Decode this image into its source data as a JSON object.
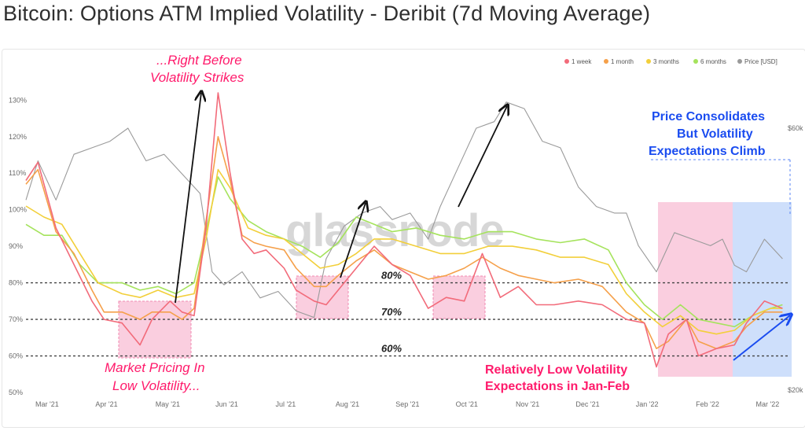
{
  "title": "Bitcoin: Options ATM Implied Volatility - Deribit (7d Moving Average)",
  "watermark": "glassnode",
  "chart_data": {
    "type": "line",
    "x_ticks": [
      "Mar '21",
      "Apr '21",
      "May '21",
      "Jun '21",
      "Jul '21",
      "Aug '21",
      "Sep '21",
      "Oct '21",
      "Nov '21",
      "Dec '21",
      "Jan '22",
      "Feb '22",
      "Mar '22"
    ],
    "y_left_ticks": [
      "50%",
      "60%",
      "70%",
      "80%",
      "90%",
      "100%",
      "110%",
      "120%",
      "130%"
    ],
    "y_left_range": [
      50,
      132
    ],
    "y_right_ticks": [
      "$20k",
      "$60k"
    ],
    "legend": [
      "1 week",
      "1 month",
      "3 months",
      "6 months",
      "Price [USD]"
    ],
    "legend_position": "top-right",
    "colors": {
      "1 week": "#f26b7a",
      "1 month": "#f5a04a",
      "3 months": "#f2cf3a",
      "6 months": "#a5e35c",
      "Price [USD]": "#9a9a9a",
      "annotation_red": "#ff1a6b",
      "annotation_blue": "#1a4cf0",
      "highlight_red": "#f9c6d9",
      "highlight_blue": "#c9dbfb"
    },
    "x_month_index_range": [
      0,
      12.7
    ],
    "series": [
      {
        "name": "1 week",
        "points": [
          [
            0,
            108
          ],
          [
            0.2,
            113
          ],
          [
            0.5,
            95
          ],
          [
            0.8,
            85
          ],
          [
            1.1,
            75
          ],
          [
            1.3,
            70
          ],
          [
            1.6,
            69
          ],
          [
            1.9,
            63
          ],
          [
            2.1,
            70
          ],
          [
            2.4,
            75
          ],
          [
            2.6,
            72
          ],
          [
            2.8,
            71
          ],
          [
            3.0,
            95
          ],
          [
            3.2,
            132
          ],
          [
            3.4,
            110
          ],
          [
            3.6,
            92
          ],
          [
            3.8,
            88
          ],
          [
            4.0,
            89
          ],
          [
            4.3,
            84
          ],
          [
            4.5,
            78
          ],
          [
            4.8,
            75
          ],
          [
            5.0,
            74
          ],
          [
            5.2,
            78
          ],
          [
            5.5,
            84
          ],
          [
            5.8,
            90
          ],
          [
            6.1,
            85
          ],
          [
            6.4,
            82
          ],
          [
            6.7,
            73
          ],
          [
            7.0,
            76
          ],
          [
            7.3,
            75
          ],
          [
            7.6,
            88
          ],
          [
            7.9,
            76
          ],
          [
            8.2,
            79
          ],
          [
            8.5,
            74
          ],
          [
            8.8,
            74
          ],
          [
            9.2,
            75
          ],
          [
            9.6,
            74
          ],
          [
            10.0,
            70
          ],
          [
            10.3,
            69
          ],
          [
            10.5,
            57
          ],
          [
            10.7,
            66
          ],
          [
            11.0,
            70
          ],
          [
            11.2,
            60
          ],
          [
            11.5,
            62
          ],
          [
            11.8,
            63
          ],
          [
            12.0,
            69
          ],
          [
            12.3,
            75
          ],
          [
            12.6,
            73
          ]
        ]
      },
      {
        "name": "1 month",
        "points": [
          [
            0,
            107
          ],
          [
            0.2,
            111
          ],
          [
            0.5,
            94
          ],
          [
            0.8,
            88
          ],
          [
            1.1,
            78
          ],
          [
            1.3,
            72
          ],
          [
            1.6,
            72
          ],
          [
            1.9,
            70
          ],
          [
            2.1,
            72
          ],
          [
            2.4,
            72
          ],
          [
            2.6,
            70
          ],
          [
            2.8,
            73
          ],
          [
            3.0,
            97
          ],
          [
            3.2,
            120
          ],
          [
            3.4,
            108
          ],
          [
            3.6,
            93
          ],
          [
            3.8,
            91
          ],
          [
            4.0,
            90
          ],
          [
            4.3,
            89
          ],
          [
            4.5,
            84
          ],
          [
            4.8,
            79
          ],
          [
            5.0,
            79
          ],
          [
            5.2,
            82
          ],
          [
            5.5,
            86
          ],
          [
            5.8,
            89
          ],
          [
            6.1,
            85
          ],
          [
            6.4,
            83
          ],
          [
            6.7,
            81
          ],
          [
            7.0,
            82
          ],
          [
            7.3,
            84
          ],
          [
            7.6,
            87
          ],
          [
            7.9,
            84
          ],
          [
            8.2,
            82
          ],
          [
            8.5,
            81
          ],
          [
            8.8,
            80
          ],
          [
            9.2,
            81
          ],
          [
            9.6,
            79
          ],
          [
            10.0,
            72
          ],
          [
            10.3,
            69
          ],
          [
            10.5,
            62
          ],
          [
            10.7,
            64
          ],
          [
            11.0,
            70
          ],
          [
            11.2,
            64
          ],
          [
            11.5,
            62
          ],
          [
            11.8,
            64
          ],
          [
            12.0,
            68
          ],
          [
            12.3,
            72
          ],
          [
            12.6,
            72
          ]
        ]
      },
      {
        "name": "3 months",
        "points": [
          [
            0,
            101
          ],
          [
            0.3,
            98
          ],
          [
            0.6,
            96
          ],
          [
            0.9,
            88
          ],
          [
            1.2,
            80
          ],
          [
            1.6,
            77
          ],
          [
            1.9,
            76
          ],
          [
            2.2,
            78
          ],
          [
            2.5,
            76
          ],
          [
            2.8,
            77
          ],
          [
            3.0,
            92
          ],
          [
            3.2,
            111
          ],
          [
            3.4,
            106
          ],
          [
            3.7,
            95
          ],
          [
            4.0,
            93
          ],
          [
            4.3,
            92
          ],
          [
            4.6,
            88
          ],
          [
            4.9,
            84
          ],
          [
            5.2,
            85
          ],
          [
            5.5,
            88
          ],
          [
            5.8,
            92
          ],
          [
            6.1,
            92
          ],
          [
            6.5,
            90
          ],
          [
            6.9,
            88
          ],
          [
            7.3,
            88
          ],
          [
            7.7,
            90
          ],
          [
            8.1,
            90
          ],
          [
            8.5,
            89
          ],
          [
            8.9,
            87
          ],
          [
            9.3,
            87
          ],
          [
            9.7,
            85
          ],
          [
            10.0,
            77
          ],
          [
            10.3,
            72
          ],
          [
            10.6,
            68
          ],
          [
            10.9,
            71
          ],
          [
            11.2,
            67
          ],
          [
            11.5,
            66
          ],
          [
            11.8,
            67
          ],
          [
            12.1,
            71
          ],
          [
            12.4,
            73
          ],
          [
            12.6,
            73
          ]
        ]
      },
      {
        "name": "6 months",
        "points": [
          [
            0,
            96
          ],
          [
            0.3,
            93
          ],
          [
            0.6,
            93
          ],
          [
            0.9,
            85
          ],
          [
            1.2,
            80
          ],
          [
            1.6,
            80
          ],
          [
            1.9,
            78
          ],
          [
            2.2,
            79
          ],
          [
            2.5,
            77
          ],
          [
            2.8,
            80
          ],
          [
            3.0,
            94
          ],
          [
            3.2,
            109
          ],
          [
            3.4,
            103
          ],
          [
            3.7,
            97
          ],
          [
            4.0,
            94
          ],
          [
            4.3,
            92
          ],
          [
            4.6,
            90
          ],
          [
            4.9,
            87
          ],
          [
            5.2,
            91
          ],
          [
            5.5,
            98
          ],
          [
            5.8,
            96
          ],
          [
            6.1,
            94
          ],
          [
            6.5,
            95
          ],
          [
            6.9,
            93
          ],
          [
            7.3,
            92
          ],
          [
            7.7,
            94
          ],
          [
            8.1,
            94
          ],
          [
            8.5,
            92
          ],
          [
            8.9,
            91
          ],
          [
            9.3,
            92
          ],
          [
            9.7,
            89
          ],
          [
            10.0,
            80
          ],
          [
            10.3,
            74
          ],
          [
            10.6,
            70
          ],
          [
            10.9,
            74
          ],
          [
            11.2,
            70
          ],
          [
            11.5,
            69
          ],
          [
            11.8,
            68
          ],
          [
            12.1,
            71
          ],
          [
            12.4,
            73
          ],
          [
            12.6,
            74
          ]
        ]
      },
      {
        "name": "Price [USD]",
        "right_axis": true,
        "points": [
          [
            0,
            49
          ],
          [
            0.2,
            55
          ],
          [
            0.5,
            49
          ],
          [
            0.8,
            56
          ],
          [
            1.1,
            57
          ],
          [
            1.4,
            58
          ],
          [
            1.7,
            60
          ],
          [
            2.0,
            55
          ],
          [
            2.3,
            56
          ],
          [
            2.6,
            53
          ],
          [
            2.9,
            50
          ],
          [
            3.1,
            38
          ],
          [
            3.3,
            36
          ],
          [
            3.6,
            38
          ],
          [
            3.9,
            34
          ],
          [
            4.2,
            35
          ],
          [
            4.5,
            32
          ],
          [
            4.8,
            31
          ],
          [
            5.0,
            40
          ],
          [
            5.3,
            45
          ],
          [
            5.6,
            47
          ],
          [
            5.9,
            48
          ],
          [
            6.1,
            46
          ],
          [
            6.4,
            47
          ],
          [
            6.7,
            43
          ],
          [
            6.9,
            48
          ],
          [
            7.2,
            54
          ],
          [
            7.5,
            60
          ],
          [
            7.8,
            61
          ],
          [
            8.0,
            64
          ],
          [
            8.3,
            63
          ],
          [
            8.6,
            58
          ],
          [
            8.9,
            57
          ],
          [
            9.2,
            51
          ],
          [
            9.5,
            48
          ],
          [
            9.8,
            47
          ],
          [
            10.0,
            47
          ],
          [
            10.2,
            42
          ],
          [
            10.5,
            38
          ],
          [
            10.8,
            44
          ],
          [
            11.1,
            43
          ],
          [
            11.4,
            42
          ],
          [
            11.6,
            43
          ],
          [
            11.8,
            39
          ],
          [
            12.0,
            38
          ],
          [
            12.3,
            43
          ],
          [
            12.6,
            40
          ]
        ]
      }
    ],
    "reference_lines": [
      {
        "y": 80,
        "label": "80%"
      },
      {
        "y": 70,
        "label": "70%"
      },
      {
        "y": 60,
        "label": "60%"
      }
    ]
  },
  "annotations": {
    "top_line1": "...Right Before",
    "top_line2": "Volatility Strikes",
    "bottom_line1": "Market Pricing In",
    "bottom_line2": "Low Volatility...",
    "right_line1": "Relatively Low Volatility",
    "right_line2": "Expectations in Jan-Feb",
    "blue_line1": "Price Consolidates",
    "blue_line2": "But Volatility",
    "blue_line3": "Expectations Climb"
  }
}
